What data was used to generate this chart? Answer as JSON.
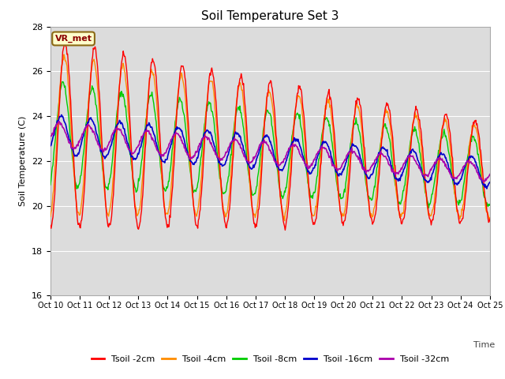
{
  "title": "Soil Temperature Set 3",
  "xlabel": "Time",
  "ylabel": "Soil Temperature (C)",
  "ylim": [
    16,
    28
  ],
  "yticks": [
    16,
    18,
    20,
    22,
    24,
    26,
    28
  ],
  "num_points": 720,
  "days": 15,
  "start_day": 10,
  "label_box_text": "VR_met",
  "colors": {
    "2cm": "#FF0000",
    "4cm": "#FF8C00",
    "8cm": "#00CC00",
    "16cm": "#0000CC",
    "32cm": "#AA00AA"
  },
  "legend_labels": [
    "Tsoil -2cm",
    "Tsoil -4cm",
    "Tsoil -8cm",
    "Tsoil -16cm",
    "Tsoil -32cm"
  ],
  "bg_color": "#DCDCDC",
  "fig_bg": "#FFFFFF"
}
